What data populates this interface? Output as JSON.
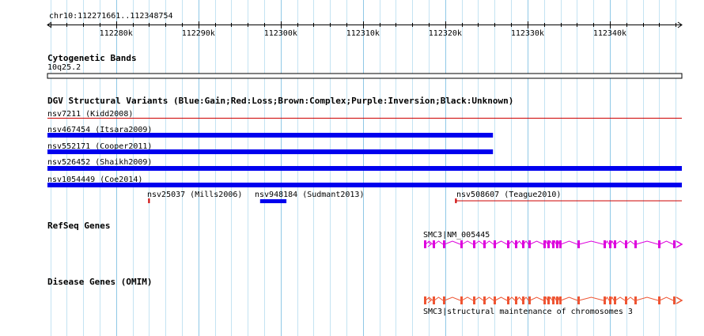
{
  "ruler": {
    "title": "chr10:112271661..112348754",
    "start": 112271661,
    "end": 112348754,
    "ticks": [
      {
        "pos": 112280000,
        "label": "112280k"
      },
      {
        "pos": 112290000,
        "label": "112290k"
      },
      {
        "pos": 112300000,
        "label": "112300k"
      },
      {
        "pos": 112310000,
        "label": "112310k"
      },
      {
        "pos": 112320000,
        "label": "112320k"
      },
      {
        "pos": 112330000,
        "label": "112330k"
      },
      {
        "pos": 112340000,
        "label": "112340k"
      }
    ]
  },
  "cytoband": {
    "title": "Cytogenetic Bands",
    "band": "10q25.2"
  },
  "dgv": {
    "title": "DGV Structural Variants (Blue:Gain;Red:Loss;Brown:Complex;Purple:Inversion;Black:Unknown)",
    "colors": {
      "gain": "#0000ee",
      "loss": "#cc0000"
    },
    "variants": [
      {
        "label": "nsv7211 (Kidd2008)",
        "type": "loss",
        "start": 112271661,
        "end": 112348754
      },
      {
        "label": "nsv467454 (Itsara2009)",
        "type": "gain",
        "start": 112271661,
        "end": 112325800
      },
      {
        "label": "nsv552171 (Cooper2011)",
        "type": "gain",
        "start": 112271661,
        "end": 112325800
      },
      {
        "label": "nsv526452 (Shaikh2009)",
        "type": "gain",
        "start": 112271661,
        "end": 112348754
      },
      {
        "label": "nsv1054449 (Coe2014)",
        "type": "gain",
        "start": 112271661,
        "end": 112348754
      },
      {
        "label": "nsv25037 (Mills2006)",
        "type": "loss",
        "start": 112283900,
        "end": 112284100
      },
      {
        "label": "nsv948184 (Sudmant2013)",
        "type": "gain",
        "start": 112297500,
        "end": 112300700
      },
      {
        "label": "nsv508607 (Teague2010)",
        "type": "loss",
        "start": 112321200,
        "end": 112348754
      }
    ]
  },
  "refseq": {
    "title": "RefSeq Genes",
    "gene": "SMC3|NM_005445",
    "color": "#dd00dd"
  },
  "omim": {
    "title": "Disease Genes (OMIM)",
    "gene": "SMC3|structural maintenance of chromosomes 3",
    "color": "#ee5533"
  },
  "colors": {
    "grid_major": "#8fc8e6",
    "grid_minor": "#c4e3f2"
  }
}
